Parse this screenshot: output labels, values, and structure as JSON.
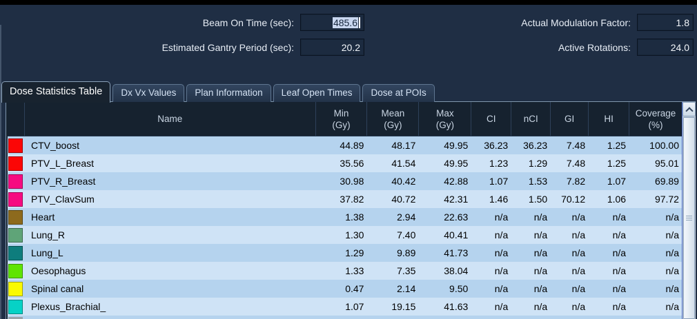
{
  "params": {
    "beam_on_time": {
      "label": "Beam On Time (sec):",
      "value": "485.6"
    },
    "gantry_period": {
      "label": "Estimated Gantry Period (sec):",
      "value": "20.2"
    },
    "modulation_factor": {
      "label": "Actual Modulation Factor:",
      "value": "1.8"
    },
    "active_rotations": {
      "label": "Active Rotations:",
      "value": "24.0"
    }
  },
  "tabs": [
    {
      "label": "Dose Statistics Table",
      "active": true
    },
    {
      "label": "Dx Vx Values",
      "active": false
    },
    {
      "label": "Plan Information",
      "active": false
    },
    {
      "label": "Leaf Open Times",
      "active": false
    },
    {
      "label": "Dose at POIs",
      "active": false
    }
  ],
  "table": {
    "columns": [
      {
        "line1": "Name",
        "line2": ""
      },
      {
        "line1": "Min",
        "line2": "(Gy)"
      },
      {
        "line1": "Mean",
        "line2": "(Gy)"
      },
      {
        "line1": "Max",
        "line2": "(Gy)"
      },
      {
        "line1": "CI",
        "line2": ""
      },
      {
        "line1": "nCI",
        "line2": ""
      },
      {
        "line1": "GI",
        "line2": ""
      },
      {
        "line1": "HI",
        "line2": ""
      },
      {
        "line1": "Coverage",
        "line2": "(%)"
      }
    ],
    "rows": [
      {
        "swatch": "#fb0606",
        "name": "CTV_boost",
        "values": [
          "44.89",
          "48.17",
          "49.95",
          "36.23",
          "36.23",
          "7.48",
          "1.25",
          "100.00"
        ]
      },
      {
        "swatch": "#fb0606",
        "name": "PTV_L_Breast",
        "values": [
          "35.56",
          "41.54",
          "49.95",
          "1.23",
          "1.29",
          "7.48",
          "1.25",
          "95.01"
        ]
      },
      {
        "swatch": "#f60b81",
        "name": "PTV_R_Breast",
        "values": [
          "30.98",
          "40.42",
          "42.88",
          "1.07",
          "1.53",
          "7.82",
          "1.07",
          "69.89"
        ]
      },
      {
        "swatch": "#f60b81",
        "name": "PTV_ClavSum",
        "values": [
          "37.82",
          "40.72",
          "42.31",
          "1.46",
          "1.50",
          "70.12",
          "1.06",
          "97.72"
        ]
      },
      {
        "swatch": "#8d6a1d",
        "name": "Heart",
        "values": [
          "1.38",
          "2.94",
          "22.63",
          "n/a",
          "n/a",
          "n/a",
          "n/a",
          "n/a"
        ]
      },
      {
        "swatch": "#5fa478",
        "name": "Lung_R",
        "values": [
          "1.30",
          "7.40",
          "40.41",
          "n/a",
          "n/a",
          "n/a",
          "n/a",
          "n/a"
        ]
      },
      {
        "swatch": "#0e7d7d",
        "name": "Lung_L",
        "values": [
          "1.29",
          "9.89",
          "41.73",
          "n/a",
          "n/a",
          "n/a",
          "n/a",
          "n/a"
        ]
      },
      {
        "swatch": "#5fe402",
        "name": "Oesophagus",
        "values": [
          "1.33",
          "7.35",
          "38.04",
          "n/a",
          "n/a",
          "n/a",
          "n/a",
          "n/a"
        ]
      },
      {
        "swatch": "#fafa02",
        "name": "Spinal canal",
        "values": [
          "0.47",
          "2.14",
          "9.50",
          "n/a",
          "n/a",
          "n/a",
          "n/a",
          "n/a"
        ]
      },
      {
        "swatch": "#06d2c6",
        "name": "Plexus_Brachial_",
        "values": [
          "1.07",
          "19.15",
          "41.63",
          "n/a",
          "n/a",
          "n/a",
          "n/a",
          "n/a"
        ]
      }
    ],
    "partial_row_swatch": "#9aa4ab"
  },
  "colors": {
    "panel_bg": "#1f2e44",
    "top_bar": "#000000",
    "header_bg": "#16222f",
    "row_odd": "#b5d3ee",
    "row_even": "#cfe3f6",
    "selection_bg": "#c9d7f0",
    "panel_border": "#8097ad",
    "scrollbar_accent": "#4a67c0"
  }
}
